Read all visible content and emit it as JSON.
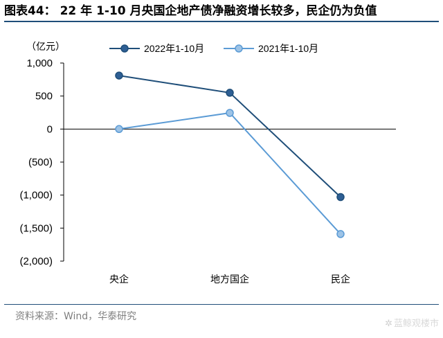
{
  "header": {
    "title": "图表44：  22 年 1-10 月央国企地产债净融资增长较多，民企仍为负值"
  },
  "footer": {
    "source": "资料来源：Wind，华泰研究",
    "watermark": "蓝鲸观楼市",
    "watermark_icon": "fan-icon"
  },
  "chart_data": {
    "type": "line",
    "title": "",
    "unit_label": "（亿元）",
    "xlabel": "",
    "ylabel": "",
    "categories": [
      "央企",
      "地方国企",
      "民企"
    ],
    "ylim": [
      -2000,
      1000
    ],
    "yticks": [
      1000,
      500,
      0,
      -500,
      -1000,
      -1500,
      -2000
    ],
    "ytick_labels": [
      "1,000",
      "500",
      "0",
      "(500)",
      "(1,000)",
      "(1,500)",
      "(2,000)"
    ],
    "grid": false,
    "legend_position": "top",
    "series": [
      {
        "name": "2022年1-10月",
        "values": [
          810,
          550,
          -1030
        ],
        "color": "#1f4e79",
        "marker_fill": "#2e5f94"
      },
      {
        "name": "2021年1-10月",
        "values": [
          0,
          245,
          -1590
        ],
        "color": "#5b9bd5",
        "marker_fill": "#9dc3e6"
      }
    ]
  }
}
